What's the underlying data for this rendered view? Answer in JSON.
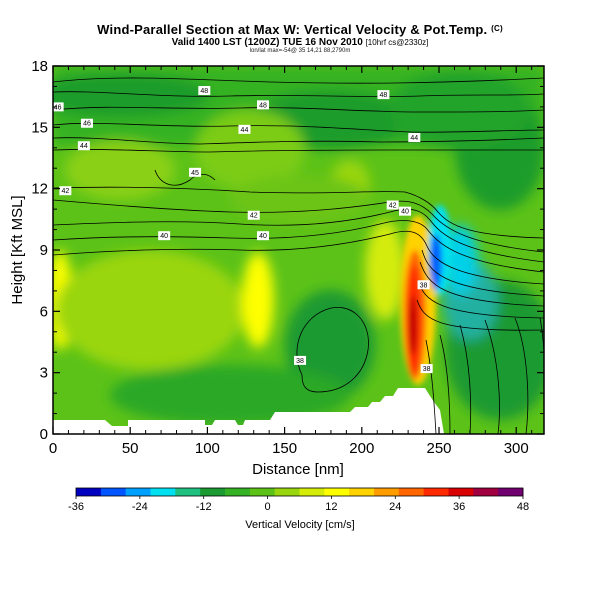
{
  "title": "Wind-Parallel Section at Max W: Vertical Velocity & Pot.Temp.",
  "title_corner": "(C)",
  "subtitle": "Valid 1400 LST (1200Z) TUE 16 Nov 2010",
  "subtitle_small": "[10hrf cs@2330z]",
  "subtitle2": "lon/lat max=-54@ 35 14,21 88,2790m",
  "chart_data": {
    "type": "heatmap",
    "xlabel": "Distance [nm]",
    "ylabel": "Height [Kft MSL]",
    "xlim": [
      0,
      318
    ],
    "ylim": [
      0,
      18
    ],
    "xticks": [
      "0",
      "50",
      "100",
      "150",
      "200",
      "250",
      "300"
    ],
    "xtick_values": [
      0,
      50,
      100,
      150,
      200,
      250,
      300
    ],
    "yticks": [
      "0",
      "3",
      "6",
      "9",
      "12",
      "15",
      "18"
    ],
    "ytick_values": [
      0,
      3,
      6,
      9,
      12,
      15,
      18
    ],
    "colorbar": {
      "label": "Vertical Velocity [cm/s]",
      "tick_labels": [
        "-36",
        "-24",
        "-12",
        "0",
        "12",
        "24",
        "36",
        "48"
      ],
      "tick_values": [
        -36,
        -24,
        -12,
        0,
        12,
        24,
        36,
        48
      ],
      "range": [
        -36,
        48
      ],
      "colors": [
        "#0000c0",
        "#0055ff",
        "#00a0ff",
        "#00e0f0",
        "#20c080",
        "#1a9a30",
        "#34b224",
        "#5cc218",
        "#9ad60e",
        "#d4ec08",
        "#ffff00",
        "#ffd200",
        "#ff9c00",
        "#ff6600",
        "#ff2a00",
        "#d80000",
        "#a00040",
        "#700070"
      ]
    },
    "contour_labels": [
      {
        "text": "46",
        "x": 3,
        "y": 16.0
      },
      {
        "text": "48",
        "x": 98,
        "y": 16.8
      },
      {
        "text": "48",
        "x": 136,
        "y": 16.1
      },
      {
        "text": "48",
        "x": 214,
        "y": 16.6
      },
      {
        "text": "46",
        "x": 22,
        "y": 15.2
      },
      {
        "text": "44",
        "x": 124,
        "y": 14.9
      },
      {
        "text": "44",
        "x": 20,
        "y": 14.1
      },
      {
        "text": "44",
        "x": 234,
        "y": 14.5
      },
      {
        "text": "45",
        "x": 92,
        "y": 12.8
      },
      {
        "text": "42",
        "x": 8,
        "y": 11.9
      },
      {
        "text": "42",
        "x": 220,
        "y": 11.2
      },
      {
        "text": "40",
        "x": 228,
        "y": 10.9
      },
      {
        "text": "42",
        "x": 130,
        "y": 10.7
      },
      {
        "text": "40",
        "x": 72,
        "y": 9.7
      },
      {
        "text": "40",
        "x": 136,
        "y": 9.7
      },
      {
        "text": "38",
        "x": 240,
        "y": 7.3
      },
      {
        "text": "38",
        "x": 160,
        "y": 3.6
      },
      {
        "text": "38",
        "x": 242,
        "y": 3.2
      }
    ]
  }
}
